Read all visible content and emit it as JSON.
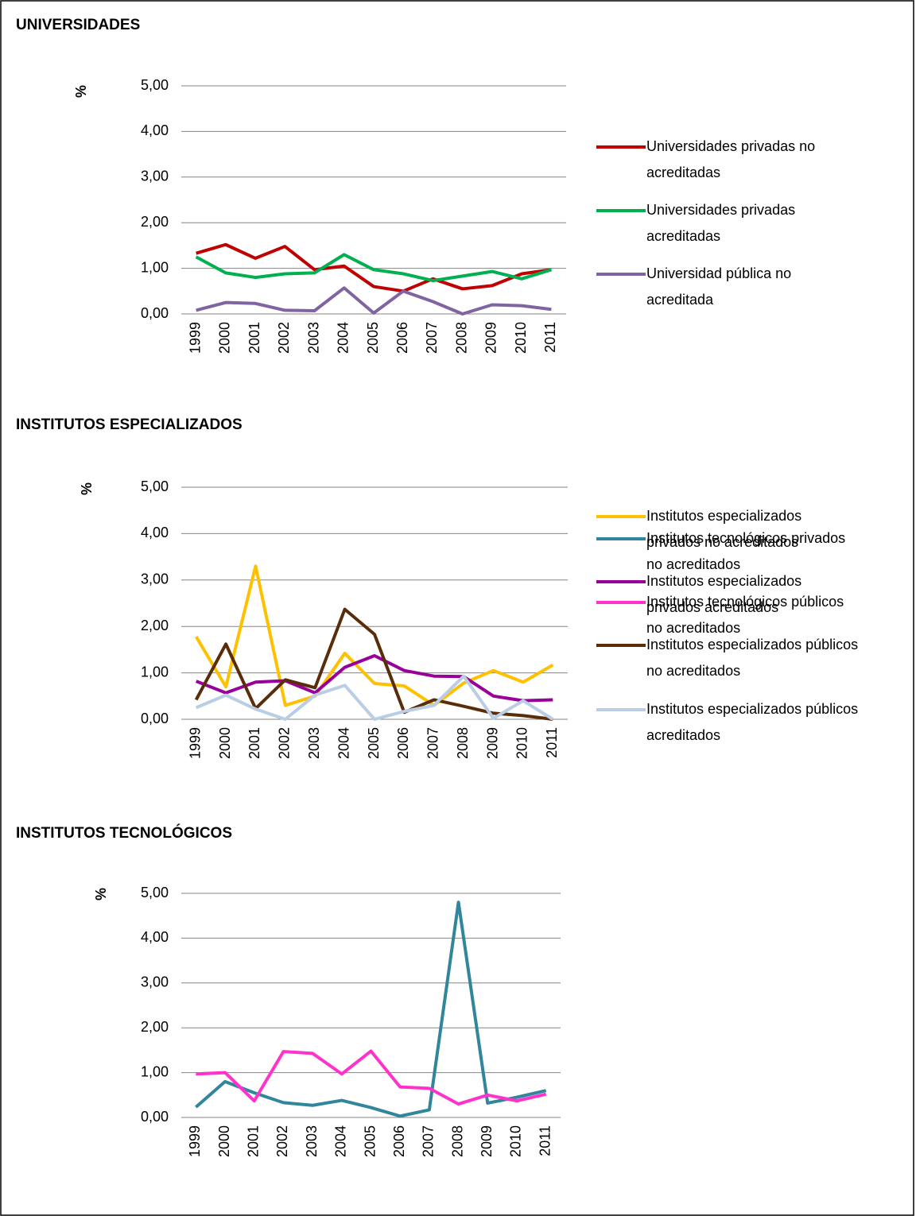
{
  "chart_data": [
    {
      "type": "line",
      "title": "UNIVERSIDADES",
      "y_label": "%",
      "categories": [
        "1999",
        "2000",
        "2001",
        "2002",
        "2003",
        "2004",
        "2005",
        "2006",
        "2007",
        "2008",
        "2009",
        "2010",
        "2011"
      ],
      "series": [
        {
          "name": "Universidades privadas no acreditadas",
          "color": "#c00000",
          "values": [
            1.33,
            1.52,
            1.22,
            1.48,
            0.97,
            1.05,
            0.6,
            0.5,
            0.77,
            0.55,
            0.62,
            0.88,
            0.97
          ]
        },
        {
          "name": "Universidades privadas acreditadas",
          "color": "#00b050",
          "values": [
            1.25,
            0.9,
            0.8,
            0.88,
            0.9,
            1.3,
            0.97,
            0.88,
            0.73,
            0.83,
            0.93,
            0.77,
            0.97
          ]
        },
        {
          "name": "Universidad pública no acreditada",
          "color": "#8064a2",
          "values": [
            0.08,
            0.25,
            0.23,
            0.08,
            0.07,
            0.57,
            0.02,
            0.5,
            0.27,
            0.0,
            0.2,
            0.18,
            0.1
          ]
        }
      ],
      "ylim": [
        0,
        5
      ],
      "yticks": [
        {
          "value": 0,
          "label": "0,00"
        },
        {
          "value": 1,
          "label": "1,00"
        },
        {
          "value": 2,
          "label": "2,00"
        },
        {
          "value": 3,
          "label": "3,00"
        },
        {
          "value": 4,
          "label": "4,00"
        },
        {
          "value": 5,
          "label": "5,00"
        }
      ],
      "grid": true,
      "legend": "right"
    },
    {
      "type": "line",
      "title": "INSTITUTOS ESPECIALIZADOS",
      "y_label": "%",
      "categories": [
        "1999",
        "2000",
        "2001",
        "2002",
        "2003",
        "2004",
        "2005",
        "2006",
        "2007",
        "2008",
        "2009",
        "2010",
        "2011"
      ],
      "series": [
        {
          "name": "Institutos especializados privados no acreditados",
          "color": "#ffc000",
          "values": [
            1.78,
            0.7,
            3.3,
            0.3,
            0.5,
            1.42,
            0.77,
            0.72,
            0.3,
            0.78,
            1.05,
            0.8,
            1.17
          ]
        },
        {
          "name": "Institutos especializados privados acreditados",
          "color": "#990099",
          "values": [
            0.82,
            0.57,
            0.8,
            0.83,
            0.57,
            1.12,
            1.37,
            1.05,
            0.93,
            0.92,
            0.5,
            0.4,
            0.42
          ]
        },
        {
          "name": "Institutos especializados públicos no acreditados",
          "color": "#5a2d0a",
          "values": [
            0.42,
            1.62,
            0.23,
            0.85,
            0.68,
            2.37,
            1.83,
            0.15,
            0.42,
            0.28,
            0.13,
            0.08,
            0.0
          ]
        },
        {
          "name": "Institutos especializados públicos acreditados",
          "color": "#b9cde5",
          "values": [
            0.25,
            0.52,
            0.22,
            0.0,
            0.52,
            0.73,
            0.0,
            0.17,
            0.3,
            0.93,
            0.02,
            0.4,
            0.0
          ]
        }
      ],
      "ylim": [
        0,
        5
      ],
      "yticks": [
        {
          "value": 0,
          "label": "0,00"
        },
        {
          "value": 1,
          "label": "1,00"
        },
        {
          "value": 2,
          "label": "2,00"
        },
        {
          "value": 3,
          "label": "3,00"
        },
        {
          "value": 4,
          "label": "4,00"
        },
        {
          "value": 5,
          "label": "5,00"
        }
      ],
      "grid": true,
      "legend": "right"
    },
    {
      "type": "line",
      "title": "INSTITUTOS TECNOLÓGICOS",
      "y_label": "%",
      "categories": [
        "1999",
        "2000",
        "2001",
        "2002",
        "2003",
        "2004",
        "2005",
        "2006",
        "2007",
        "2008",
        "2009",
        "2010",
        "2011"
      ],
      "series": [
        {
          "name": "Institutos tecnológicos privados no acreditados",
          "color": "#31859c",
          "values": [
            0.23,
            0.8,
            0.55,
            0.33,
            0.27,
            0.38,
            0.22,
            0.03,
            0.17,
            4.8,
            0.32,
            0.45,
            0.6
          ]
        },
        {
          "name": "Institutos tecnológicos públicos  no acreditados",
          "color": "#ff33cc",
          "values": [
            0.97,
            1.0,
            0.37,
            1.47,
            1.43,
            0.97,
            1.48,
            0.68,
            0.65,
            0.3,
            0.5,
            0.37,
            0.52
          ]
        }
      ],
      "ylim": [
        0,
        5
      ],
      "yticks": [
        {
          "value": 0,
          "label": "0,00"
        },
        {
          "value": 1,
          "label": "1,00"
        },
        {
          "value": 2,
          "label": "2,00"
        },
        {
          "value": 3,
          "label": "3,00"
        },
        {
          "value": 4,
          "label": "4,00"
        },
        {
          "value": 5,
          "label": "5,00"
        }
      ],
      "grid": true,
      "legend": "right"
    }
  ]
}
